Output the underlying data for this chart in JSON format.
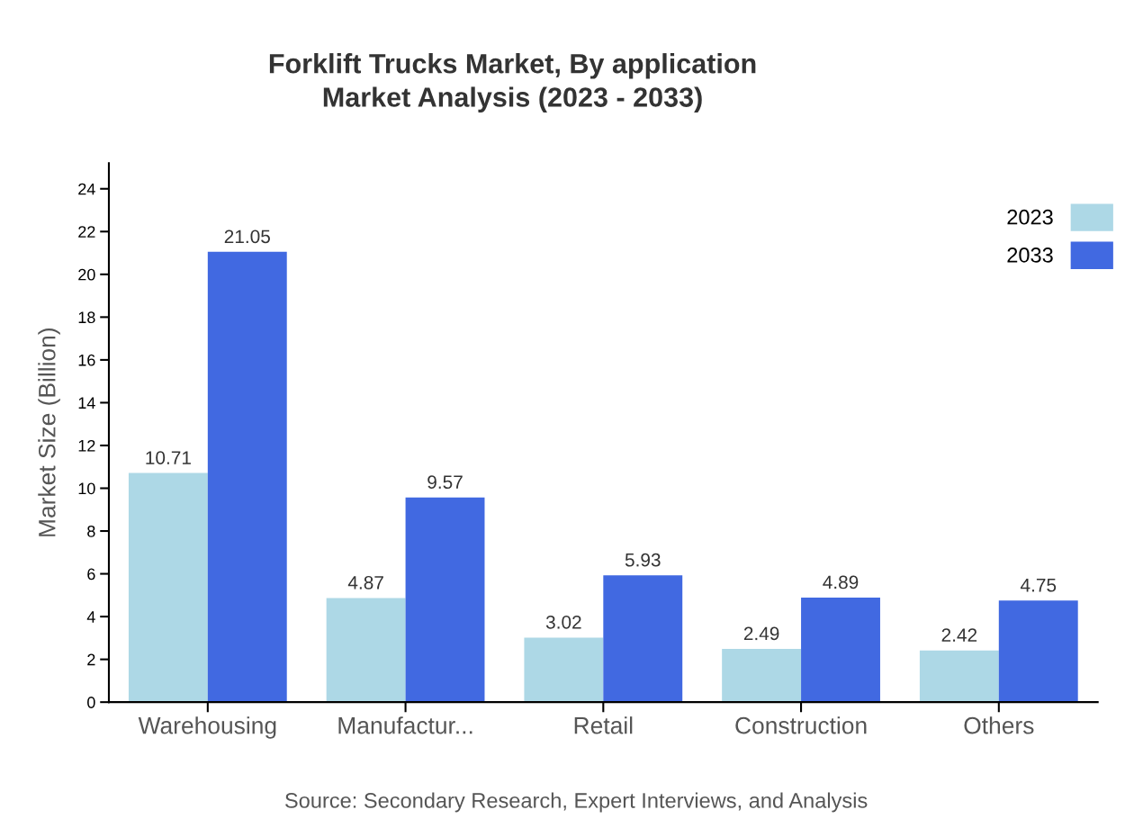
{
  "chart_data": {
    "type": "bar",
    "title": "Forklift Trucks Market, By application\nMarket Analysis (2023 - 2033)",
    "ylabel": "Market Size (Billion)",
    "categories": [
      "Warehousing",
      "Manufactur...",
      "Retail",
      "Construction",
      "Others"
    ],
    "series": [
      {
        "name": "2023",
        "color": "#add8e6",
        "values": [
          10.71,
          4.87,
          3.02,
          2.49,
          2.42
        ]
      },
      {
        "name": "2033",
        "color": "#4169e1",
        "values": [
          21.05,
          9.57,
          5.93,
          4.89,
          4.75
        ]
      }
    ],
    "ylim": [
      0,
      25.2
    ],
    "yticks": [
      0,
      2,
      4,
      6,
      8,
      10,
      12,
      14,
      16,
      18,
      20,
      22,
      24
    ],
    "data_labels": true,
    "grid": false,
    "legend": "top right",
    "annotations": [
      "Source: Secondary Research, Expert Interviews, and Analysis"
    ]
  }
}
